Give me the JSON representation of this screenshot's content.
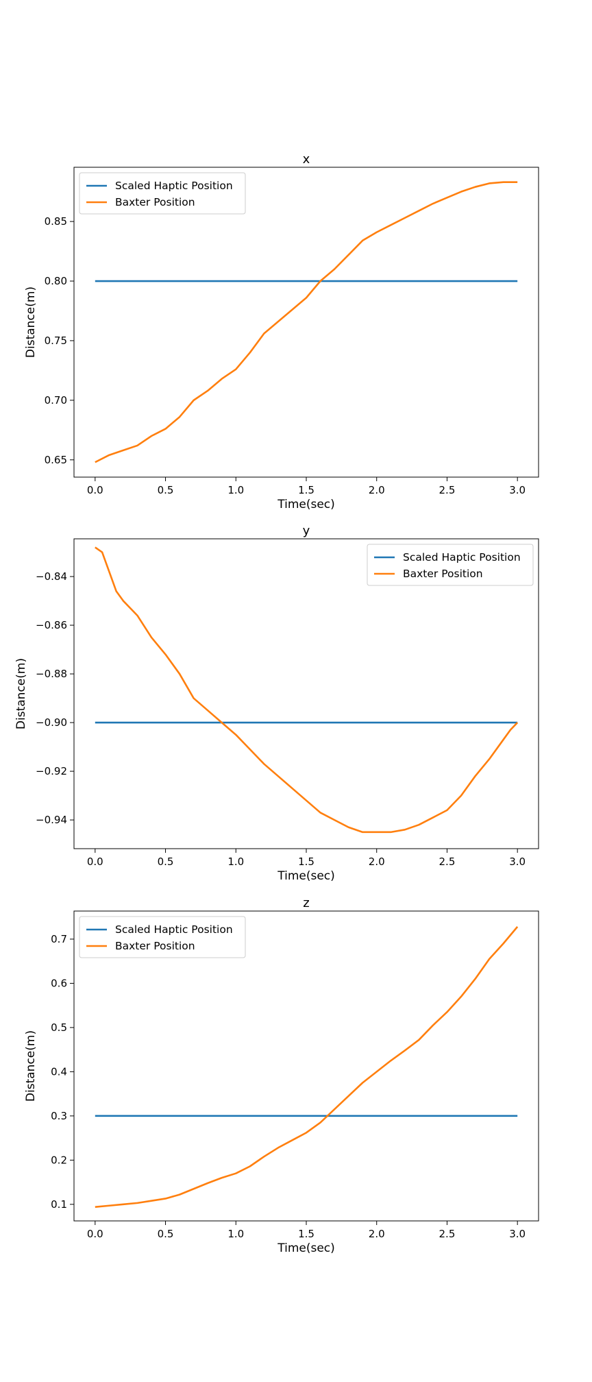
{
  "colors": {
    "scaled_haptic": "#1f77b4",
    "baxter": "#ff7f0e",
    "axes": "#000000",
    "legend_border": "#cccccc"
  },
  "chart_data": [
    {
      "type": "line",
      "title": "x",
      "xlabel": "Time(sec)",
      "ylabel": "Distance(m)",
      "xlim": [
        -0.15,
        3.15
      ],
      "ylim": [
        0.6355,
        0.8955
      ],
      "xticks": [
        0.0,
        0.5,
        1.0,
        1.5,
        2.0,
        2.5,
        3.0
      ],
      "xtick_labels": [
        "0.0",
        "0.5",
        "1.0",
        "1.5",
        "2.0",
        "2.5",
        "3.0"
      ],
      "yticks": [
        0.65,
        0.7,
        0.75,
        0.8,
        0.85
      ],
      "ytick_labels": [
        "0.65",
        "0.70",
        "0.75",
        "0.80",
        "0.85"
      ],
      "grid": false,
      "legend": "top-left",
      "series": [
        {
          "name": "Scaled Haptic Position",
          "x": [
            0.0,
            3.0
          ],
          "y": [
            0.8,
            0.8
          ]
        },
        {
          "name": "Baxter Position",
          "x": [
            0.0,
            0.1,
            0.2,
            0.3,
            0.4,
            0.5,
            0.6,
            0.7,
            0.8,
            0.9,
            1.0,
            1.1,
            1.2,
            1.3,
            1.4,
            1.5,
            1.6,
            1.7,
            1.8,
            1.9,
            2.0,
            2.1,
            2.2,
            2.3,
            2.4,
            2.5,
            2.6,
            2.7,
            2.8,
            2.9,
            3.0
          ],
          "y": [
            0.648,
            0.654,
            0.658,
            0.662,
            0.67,
            0.676,
            0.686,
            0.7,
            0.708,
            0.718,
            0.726,
            0.74,
            0.756,
            0.766,
            0.776,
            0.786,
            0.8,
            0.81,
            0.822,
            0.834,
            0.841,
            0.847,
            0.853,
            0.859,
            0.865,
            0.87,
            0.875,
            0.879,
            0.882,
            0.883,
            0.883
          ]
        }
      ]
    },
    {
      "type": "line",
      "title": "y",
      "xlabel": "Time(sec)",
      "ylabel": "Distance(m)",
      "xlim": [
        -0.15,
        3.15
      ],
      "ylim": [
        -0.9518,
        -0.8245
      ],
      "xticks": [
        0.0,
        0.5,
        1.0,
        1.5,
        2.0,
        2.5,
        3.0
      ],
      "xtick_labels": [
        "0.0",
        "0.5",
        "1.0",
        "1.5",
        "2.0",
        "2.5",
        "3.0"
      ],
      "yticks": [
        -0.94,
        -0.92,
        -0.9,
        -0.88,
        -0.86,
        -0.84
      ],
      "ytick_labels": [
        "−0.94",
        "−0.92",
        "−0.90",
        "−0.88",
        "−0.86",
        "−0.84"
      ],
      "grid": false,
      "legend": "top-right",
      "series": [
        {
          "name": "Scaled Haptic Position",
          "x": [
            0.0,
            3.0
          ],
          "y": [
            -0.9,
            -0.9
          ]
        },
        {
          "name": "Baxter Position",
          "x": [
            0.0,
            0.05,
            0.1,
            0.15,
            0.2,
            0.3,
            0.4,
            0.5,
            0.6,
            0.7,
            0.8,
            0.9,
            1.0,
            1.1,
            1.2,
            1.3,
            1.4,
            1.5,
            1.6,
            1.7,
            1.8,
            1.9,
            2.0,
            2.1,
            2.2,
            2.3,
            2.4,
            2.5,
            2.6,
            2.7,
            2.8,
            2.9,
            2.95,
            3.0
          ],
          "y": [
            -0.828,
            -0.83,
            -0.838,
            -0.846,
            -0.85,
            -0.856,
            -0.865,
            -0.872,
            -0.88,
            -0.89,
            -0.895,
            -0.9,
            -0.905,
            -0.911,
            -0.917,
            -0.922,
            -0.927,
            -0.932,
            -0.937,
            -0.94,
            -0.943,
            -0.945,
            -0.945,
            -0.945,
            -0.944,
            -0.942,
            -0.939,
            -0.936,
            -0.93,
            -0.922,
            -0.915,
            -0.907,
            -0.903,
            -0.9
          ]
        }
      ]
    },
    {
      "type": "line",
      "title": "z",
      "xlabel": "Time(sec)",
      "ylabel": "Distance(m)",
      "xlim": [
        -0.15,
        3.15
      ],
      "ylim": [
        0.0625,
        0.7635
      ],
      "xticks": [
        0.0,
        0.5,
        1.0,
        1.5,
        2.0,
        2.5,
        3.0
      ],
      "xtick_labels": [
        "0.0",
        "0.5",
        "1.0",
        "1.5",
        "2.0",
        "2.5",
        "3.0"
      ],
      "yticks": [
        0.1,
        0.2,
        0.3,
        0.4,
        0.5,
        0.6,
        0.7
      ],
      "ytick_labels": [
        "0.1",
        "0.2",
        "0.3",
        "0.4",
        "0.5",
        "0.6",
        "0.7"
      ],
      "grid": false,
      "legend": "top-left",
      "series": [
        {
          "name": "Scaled Haptic Position",
          "x": [
            0.0,
            3.0
          ],
          "y": [
            0.3,
            0.3
          ]
        },
        {
          "name": "Baxter Position",
          "x": [
            0.0,
            0.1,
            0.2,
            0.3,
            0.4,
            0.5,
            0.6,
            0.7,
            0.8,
            0.9,
            1.0,
            1.1,
            1.2,
            1.3,
            1.4,
            1.5,
            1.6,
            1.7,
            1.8,
            1.9,
            2.0,
            2.1,
            2.2,
            2.3,
            2.4,
            2.5,
            2.6,
            2.7,
            2.8,
            2.9,
            3.0
          ],
          "y": [
            0.094,
            0.097,
            0.1,
            0.103,
            0.108,
            0.113,
            0.122,
            0.135,
            0.148,
            0.16,
            0.17,
            0.186,
            0.208,
            0.228,
            0.245,
            0.262,
            0.285,
            0.315,
            0.345,
            0.375,
            0.4,
            0.425,
            0.448,
            0.472,
            0.505,
            0.535,
            0.57,
            0.61,
            0.655,
            0.69,
            0.728
          ]
        }
      ]
    }
  ]
}
